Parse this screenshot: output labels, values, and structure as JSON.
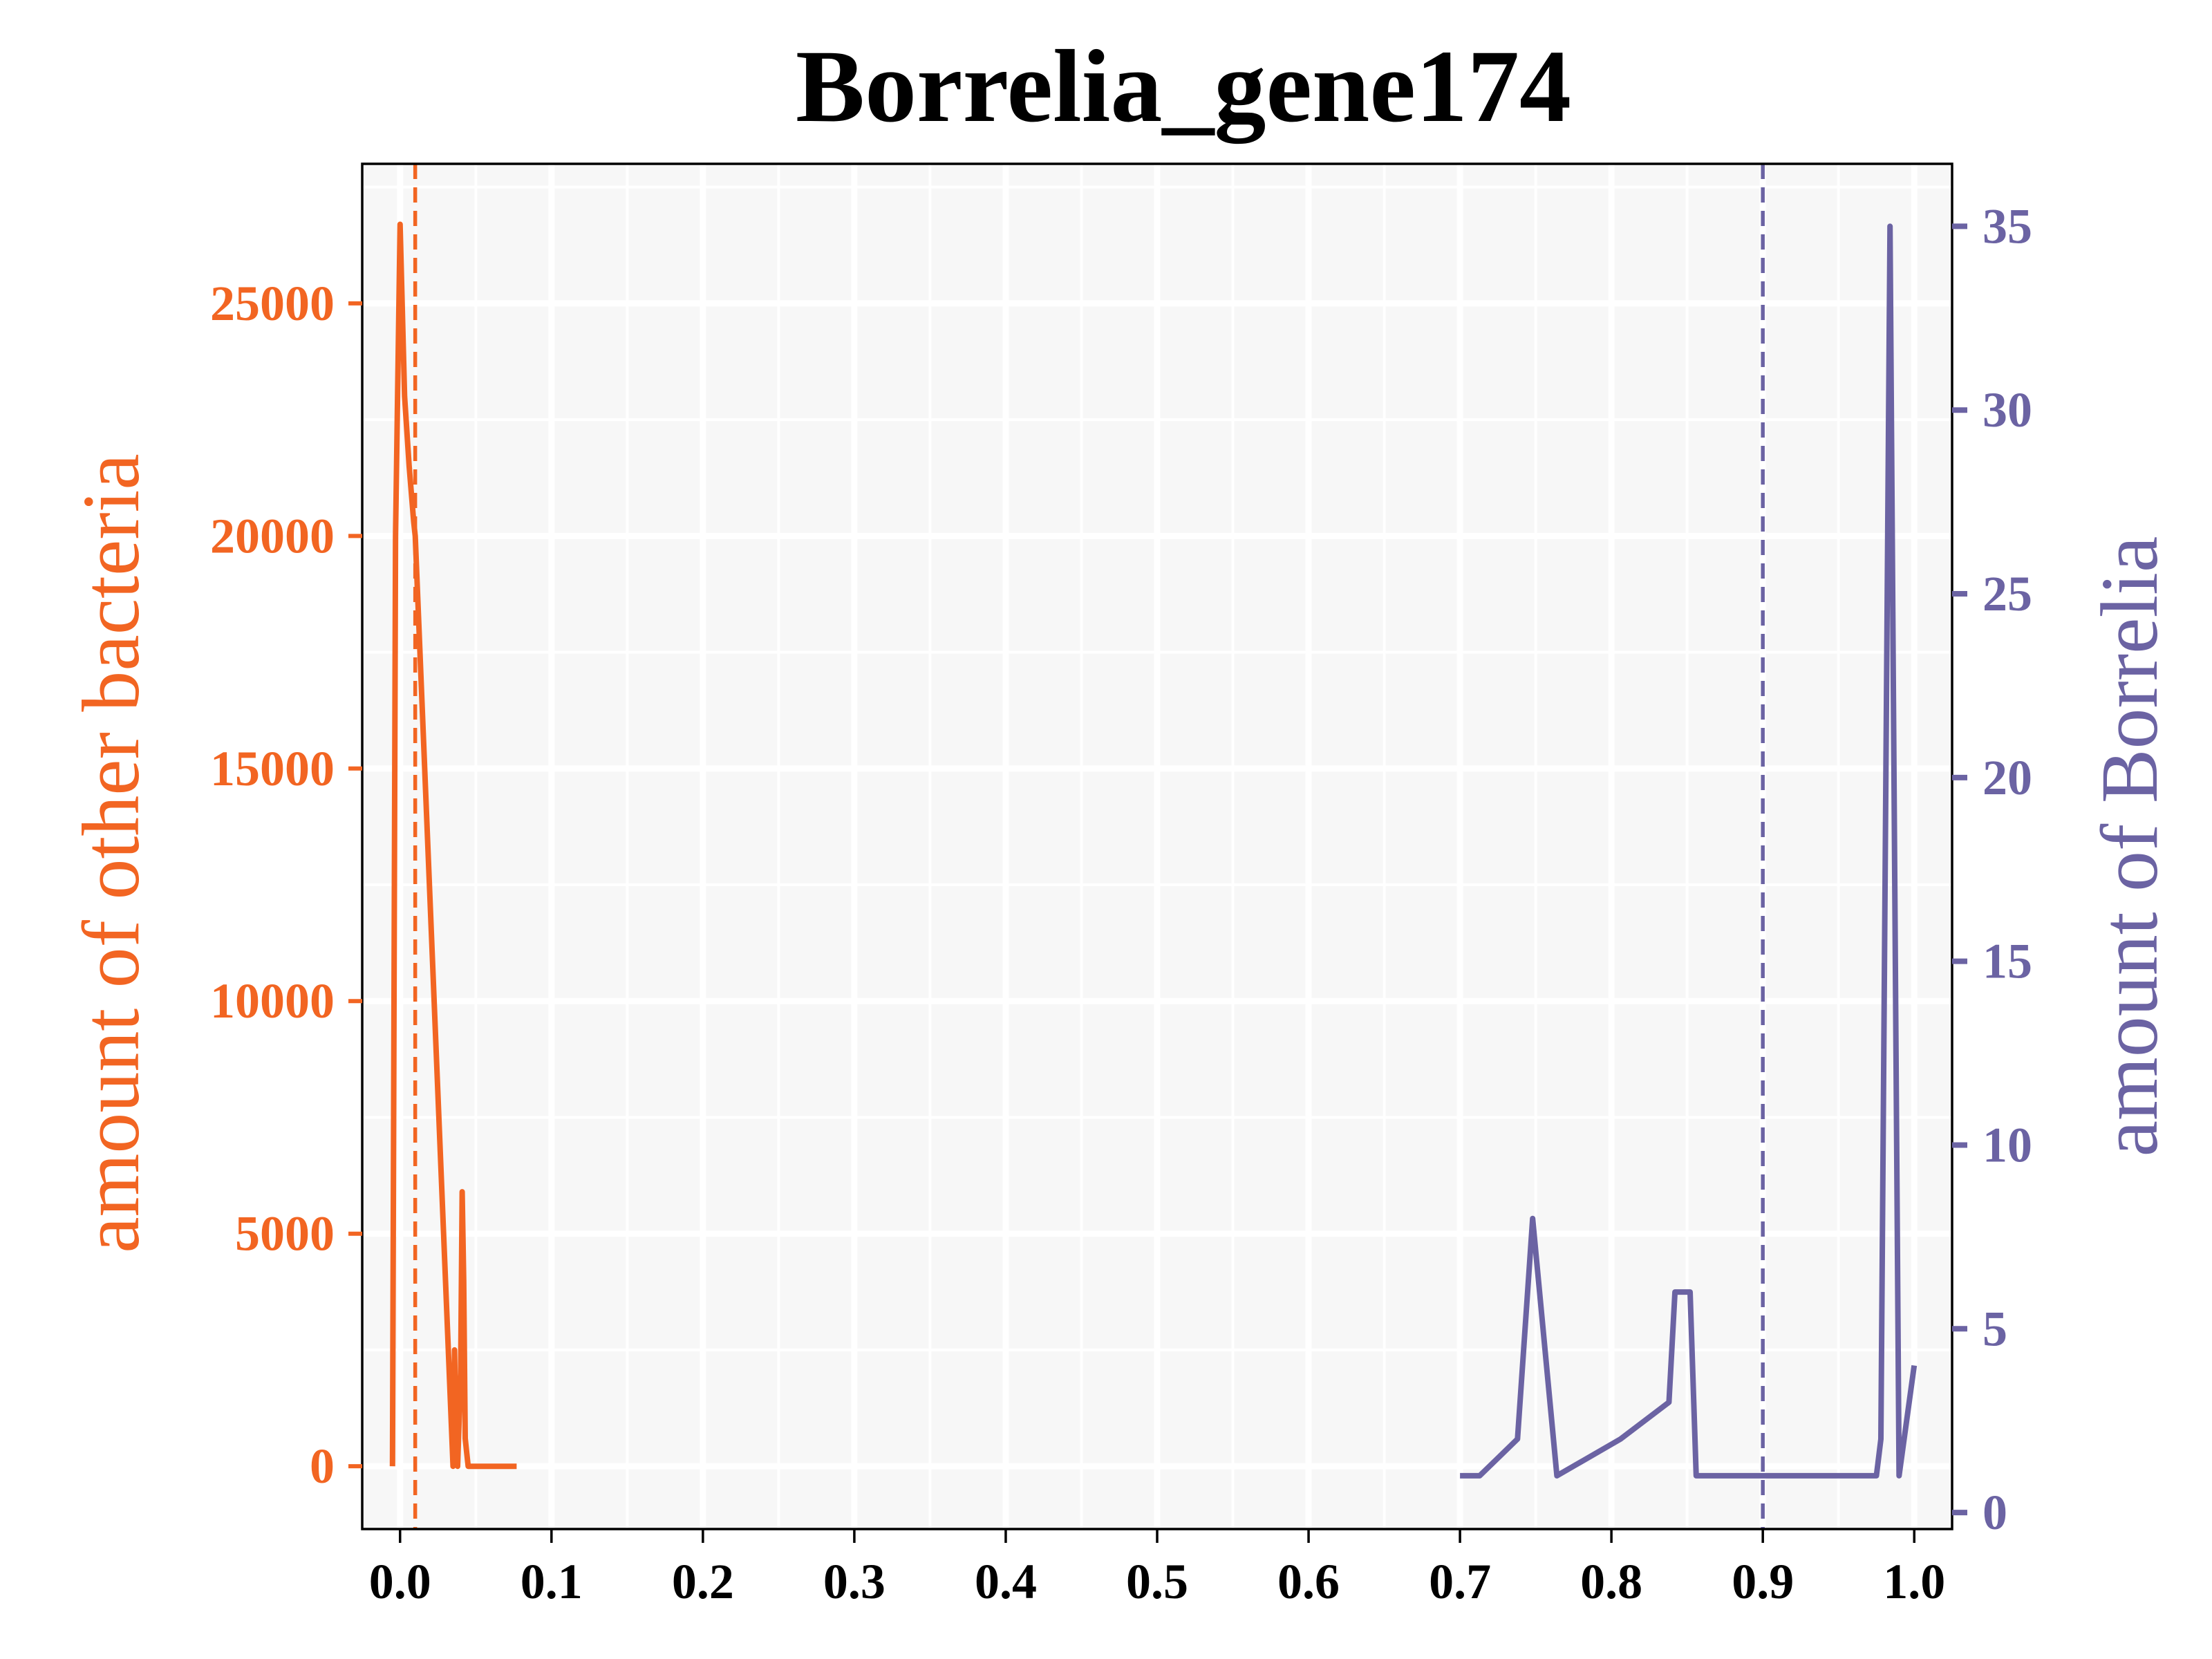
{
  "chart_data": {
    "type": "line",
    "title": "Borrelia_gene174",
    "xlabel": "",
    "xlim": [
      -0.025,
      1.025
    ],
    "xticks": [
      0.0,
      0.1,
      0.2,
      0.3,
      0.4,
      0.5,
      0.6,
      0.7,
      0.8,
      0.9,
      1.0
    ],
    "xtick_labels": [
      "0.0",
      "0.1",
      "0.2",
      "0.3",
      "0.4",
      "0.5",
      "0.6",
      "0.7",
      "0.8",
      "0.9",
      "1.0"
    ],
    "grid": true,
    "y_left": {
      "label": "amount of other bacteria",
      "color": "#f26522",
      "lim": [
        -1350,
        28000
      ],
      "ticks": [
        0,
        5000,
        10000,
        15000,
        20000,
        25000
      ],
      "tick_labels": [
        "0",
        "5000",
        "10000",
        "15000",
        "20000",
        "25000"
      ]
    },
    "y_right": {
      "label": "amount of Borrelia",
      "color": "#6b63a3",
      "lim": [
        -0.45,
        36.7
      ],
      "ticks": [
        0,
        5,
        10,
        15,
        20,
        25,
        30,
        35
      ],
      "tick_labels": [
        "0",
        "5",
        "10",
        "15",
        "20",
        "25",
        "30",
        "35"
      ]
    },
    "series": [
      {
        "axis": "left",
        "color": "#f26522",
        "x": [
          -0.005,
          -0.003,
          0.0,
          0.003,
          0.006,
          0.009,
          0.01,
          0.035,
          0.036,
          0.037,
          0.038,
          0.04,
          0.041,
          0.042,
          0.043,
          0.044,
          0.045,
          0.05,
          0.06,
          0.07,
          0.077
        ],
        "y": [
          0,
          20000,
          26700,
          23000,
          21500,
          20300,
          20000,
          0,
          2500,
          600,
          0,
          2000,
          5900,
          4000,
          600,
          300,
          0,
          0,
          0,
          0,
          0
        ]
      },
      {
        "axis": "right",
        "color": "#6b63a3",
        "x": [
          0.7,
          0.713,
          0.738,
          0.748,
          0.764,
          0.806,
          0.838,
          0.842,
          0.852,
          0.856,
          0.9,
          0.975,
          0.978,
          0.984,
          0.99,
          1.0
        ],
        "y": [
          1,
          1,
          2,
          8,
          1,
          2,
          3,
          6,
          6,
          1,
          1,
          1,
          2,
          35,
          1,
          4
        ]
      }
    ],
    "vlines": [
      {
        "x": 0.01,
        "color": "#f26522",
        "style": "dashed"
      },
      {
        "x": 0.9,
        "color": "#6b63a3",
        "style": "dashed"
      }
    ]
  }
}
